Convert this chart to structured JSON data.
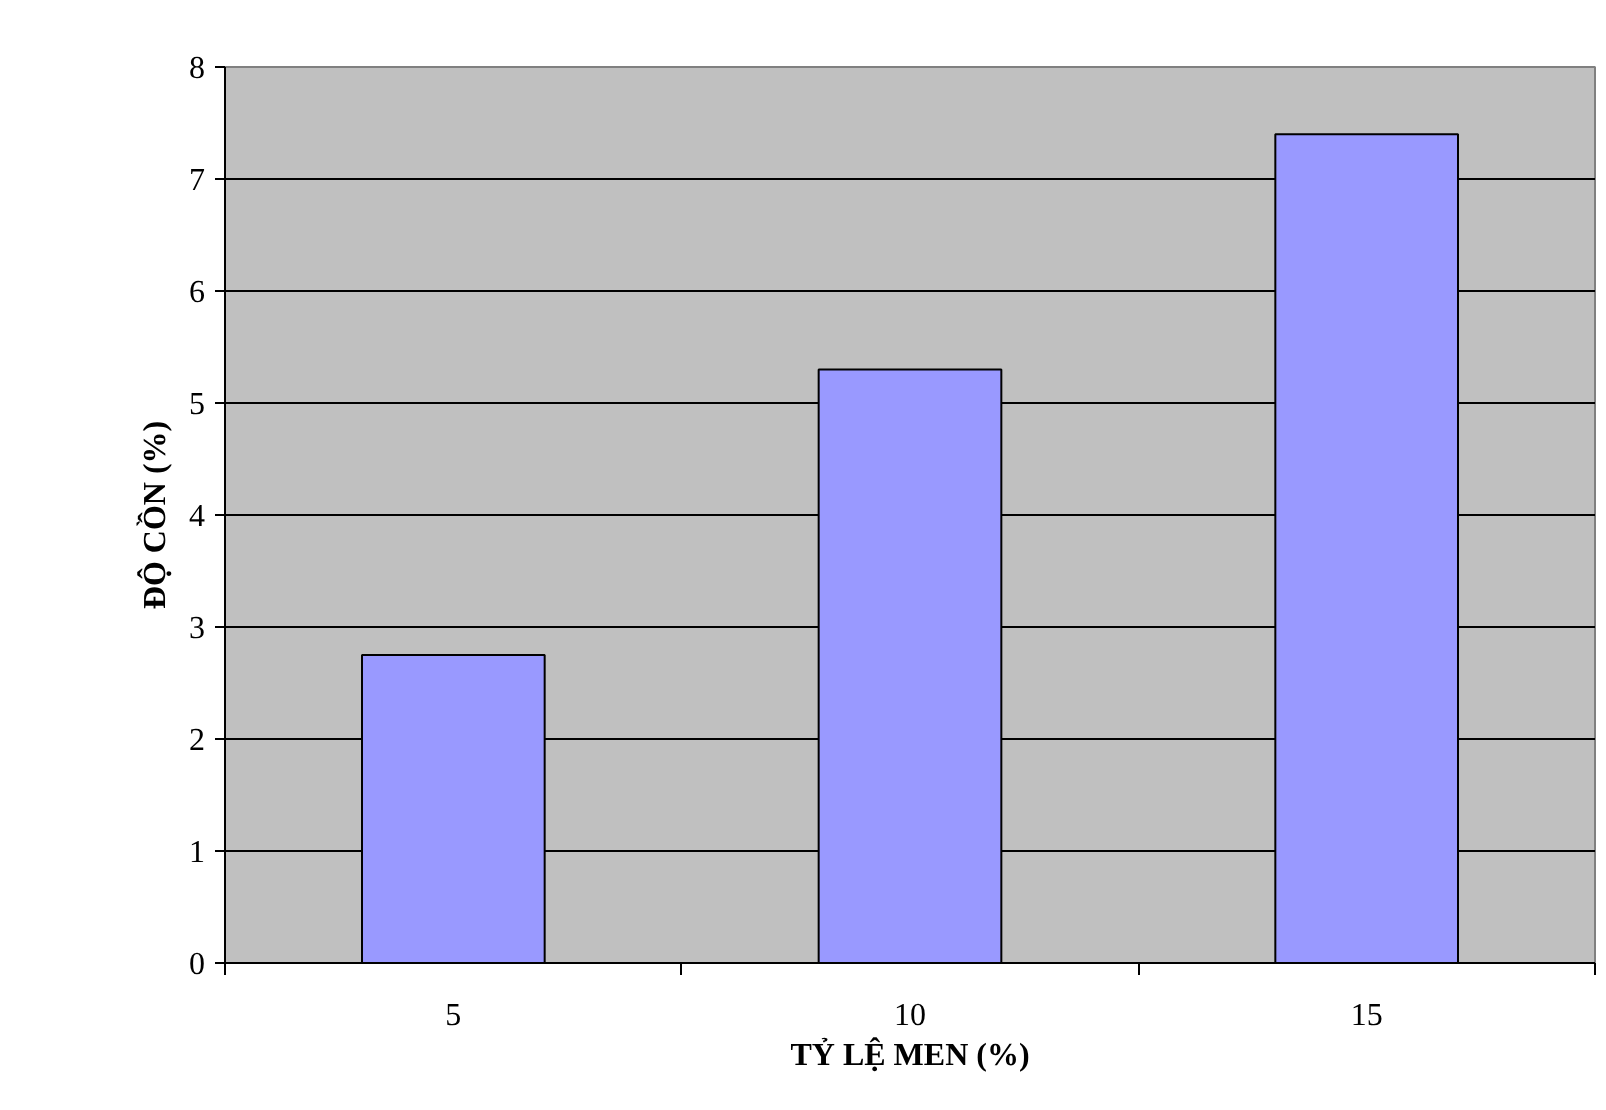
{
  "chart_data": {
    "type": "bar",
    "xlabel": "TỶ LỆ MEN (%)",
    "ylabel": "ĐỘ CỒN (%)",
    "categories": [
      "5",
      "10",
      "15"
    ],
    "values": [
      2.75,
      5.3,
      7.4
    ],
    "color": "#9999ff",
    "ylim": [
      0,
      8
    ],
    "yticks": [
      0,
      1,
      2,
      3,
      4,
      5,
      6,
      7,
      8
    ],
    "grid": "y"
  }
}
